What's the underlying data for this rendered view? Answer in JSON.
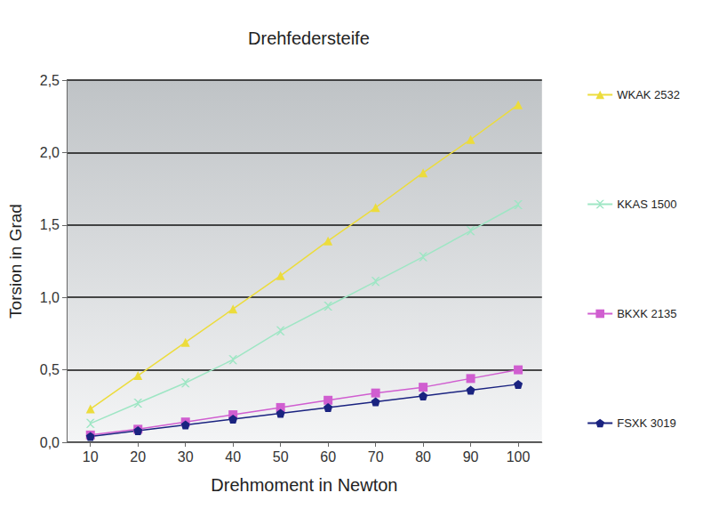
{
  "chart_data": {
    "type": "line",
    "title": "Drehfedersteife",
    "x_label": "Drehmoment in Newton",
    "y_label": "Torsion in Grad",
    "categories": [
      10,
      20,
      30,
      40,
      50,
      60,
      70,
      80,
      90,
      100
    ],
    "series": [
      {
        "name": "WKAK 2532",
        "color": "#ecdc3c",
        "marker": "triangle",
        "values": [
          0.23,
          0.46,
          0.69,
          0.92,
          1.15,
          1.39,
          1.62,
          1.86,
          2.09,
          2.33
        ]
      },
      {
        "name": "KKAS 1500",
        "color": "#9ee6c4",
        "marker": "x",
        "values": [
          0.13,
          0.27,
          0.41,
          0.57,
          0.77,
          0.94,
          1.11,
          1.28,
          1.46,
          1.64
        ]
      },
      {
        "name": "BKXK 2135",
        "color": "#d05ed0",
        "marker": "square",
        "values": [
          0.05,
          0.09,
          0.14,
          0.19,
          0.24,
          0.29,
          0.34,
          0.38,
          0.44,
          0.5
        ]
      },
      {
        "name": "FSXK 3019",
        "color": "#1a2380",
        "marker": "pentagon",
        "values": [
          0.04,
          0.08,
          0.12,
          0.16,
          0.2,
          0.24,
          0.28,
          0.32,
          0.36,
          0.4
        ]
      }
    ],
    "ylim": [
      0,
      2.5
    ],
    "yticks": [
      {
        "value": 0,
        "label": "0,0"
      },
      {
        "value": 0.5,
        "label": "0,5"
      },
      {
        "value": 1,
        "label": "1,0"
      },
      {
        "value": 1.5,
        "label": "1,5"
      },
      {
        "value": 2,
        "label": "2,0"
      },
      {
        "value": 2.5,
        "label": "2,5"
      }
    ],
    "grid": true,
    "legend": "right"
  }
}
